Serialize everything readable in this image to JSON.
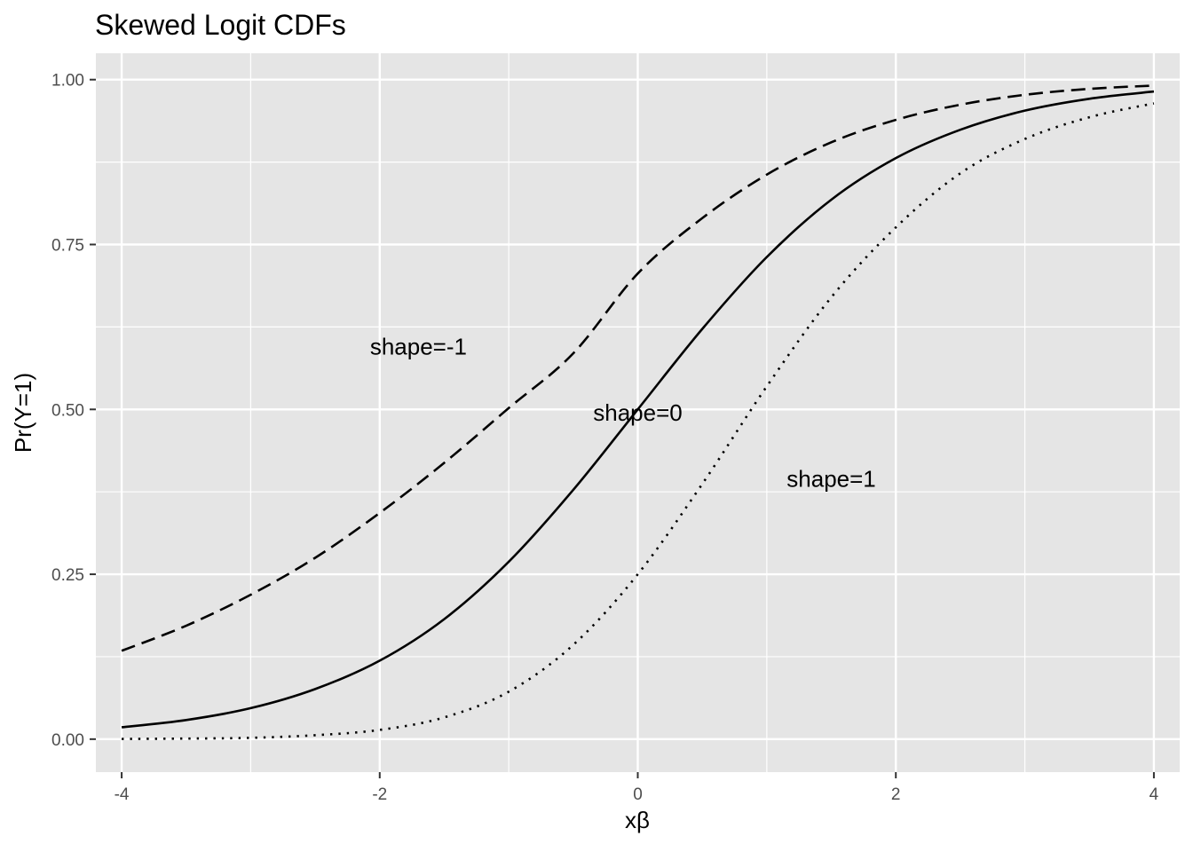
{
  "chart_data": {
    "type": "line",
    "title": "Skewed Logit CDFs",
    "xlabel": "xβ",
    "ylabel": "Pr(Y=1)",
    "xlim": [
      -4.2,
      4.2
    ],
    "ylim": [
      -0.05,
      1.04
    ],
    "x_ticks": [
      -4,
      -2,
      0,
      2,
      4
    ],
    "x_tick_labels": [
      "-4",
      "-2",
      "0",
      "2",
      "4"
    ],
    "y_ticks": [
      0,
      0.25,
      0.5,
      0.75,
      1
    ],
    "y_tick_labels": [
      "0.00",
      "0.25",
      "0.50",
      "0.75",
      "1.00"
    ],
    "grid": true,
    "background": "#e5e5e5",
    "grid_color": "#ffffff",
    "line_color": "#000000",
    "series": [
      {
        "linetype": "dashed",
        "x": [
          -4,
          -3.5,
          -3,
          -2.5,
          -2,
          -1.5,
          -1,
          -0.5,
          0,
          0.5,
          1,
          1.5,
          2,
          2.5,
          3,
          3.5,
          4
        ],
        "y": [
          0.134,
          0.172,
          0.219,
          0.275,
          0.343,
          0.419,
          0.502,
          0.585,
          0.706,
          0.79,
          0.856,
          0.905,
          0.939,
          0.962,
          0.977,
          0.986,
          0.991
        ]
      },
      {
        "linetype": "solid",
        "x": [
          -4,
          -3.5,
          -3,
          -2.5,
          -2,
          -1.5,
          -1,
          -0.5,
          0,
          0.5,
          1,
          1.5,
          2,
          2.5,
          3,
          3.5,
          4
        ],
        "y": [
          0.018,
          0.029,
          0.047,
          0.076,
          0.119,
          0.182,
          0.269,
          0.378,
          0.5,
          0.622,
          0.731,
          0.818,
          0.881,
          0.924,
          0.953,
          0.971,
          0.982
        ]
      },
      {
        "linetype": "dotted",
        "x": [
          -4,
          -3.5,
          -3,
          -2.5,
          -2,
          -1.5,
          -1,
          -0.5,
          0,
          0.5,
          1,
          1.5,
          2,
          2.5,
          3,
          3.5,
          4
        ],
        "y": [
          0.0003,
          0.0009,
          0.002,
          0.006,
          0.014,
          0.033,
          0.072,
          0.143,
          0.25,
          0.387,
          0.535,
          0.67,
          0.776,
          0.858,
          0.91,
          0.943,
          0.964
        ]
      }
    ],
    "annotations": [
      {
        "text": "shape=-1",
        "x": -1.7,
        "y": 0.595
      },
      {
        "text": "shape=0",
        "x": 0,
        "y": 0.495
      },
      {
        "text": "shape=1",
        "x": 1.5,
        "y": 0.395
      }
    ]
  }
}
